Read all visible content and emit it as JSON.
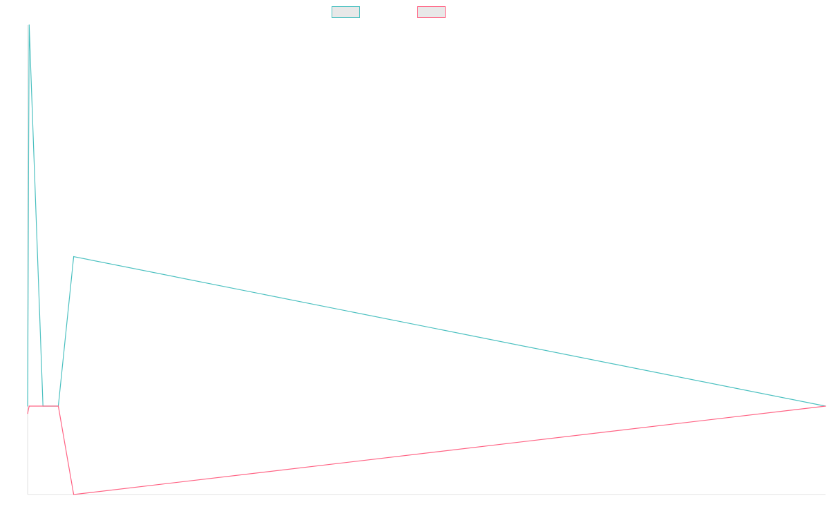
{
  "chart_data": {
    "type": "line",
    "title": "",
    "xlabel": "",
    "ylabel": "",
    "legend_position": "top-center",
    "grid": false,
    "x_range": [
      0,
      52
    ],
    "ylim": [
      -12,
      51
    ],
    "x": [
      0,
      0.1,
      1,
      2,
      3,
      52
    ],
    "series": [
      {
        "color": "#4bc0c0",
        "legend_fill": "#e8e8e8",
        "values": [
          0,
          51,
          0,
          0,
          20,
          0
        ]
      },
      {
        "color": "#ff6384",
        "legend_fill": "#e8e8e8",
        "values": [
          -1,
          0,
          0,
          0,
          -12,
          0
        ]
      }
    ]
  }
}
